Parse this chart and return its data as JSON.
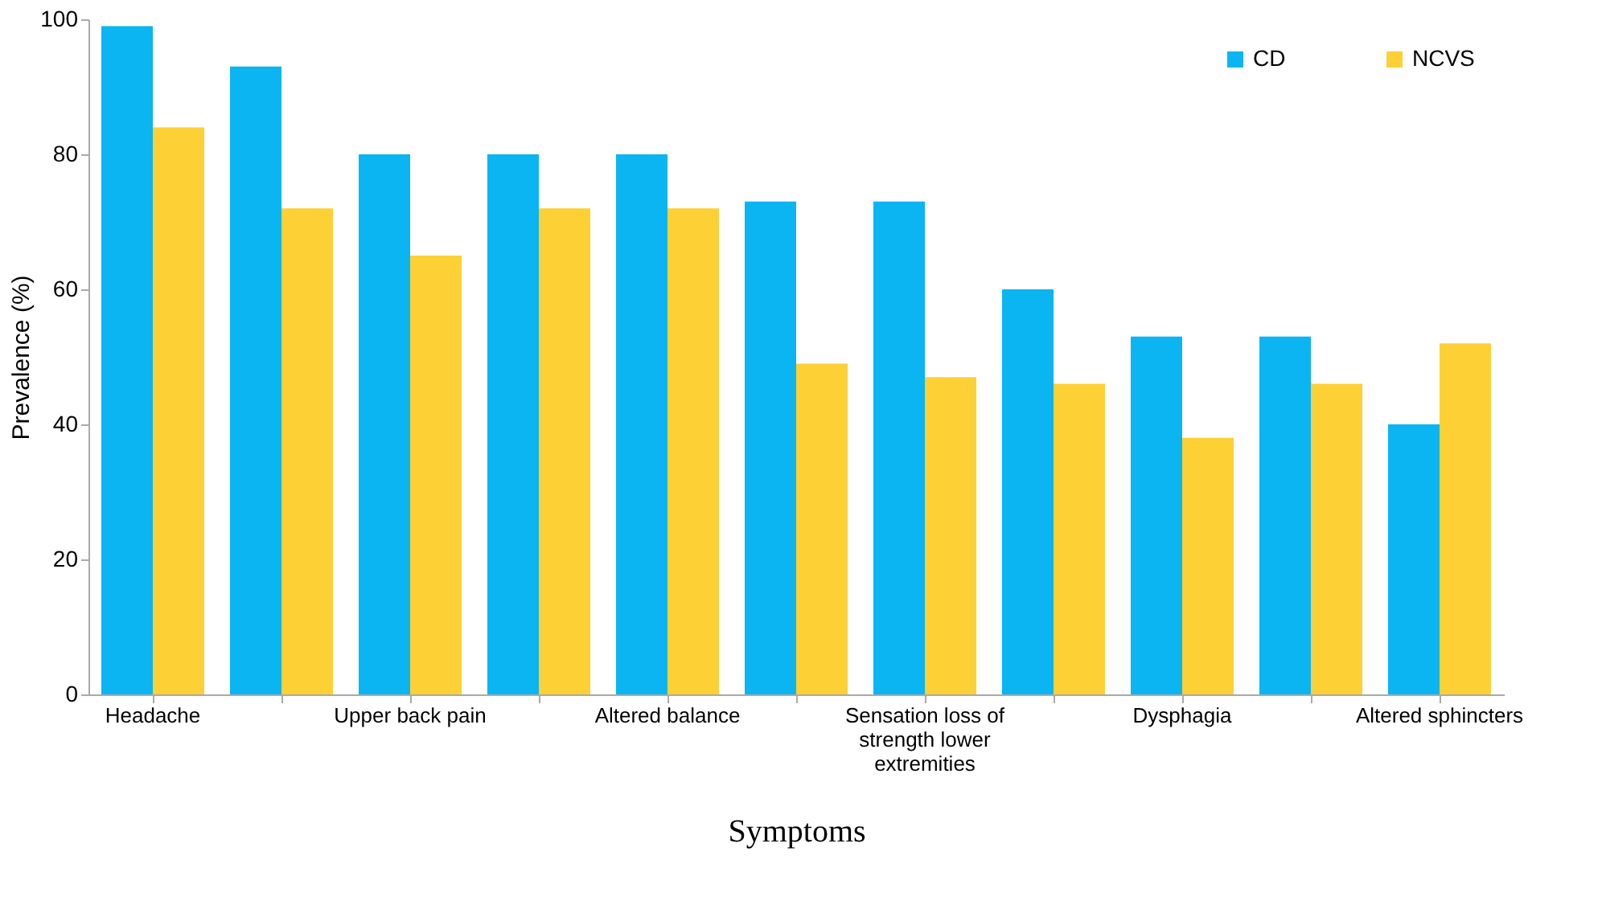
{
  "chart_data": {
    "type": "bar",
    "xlabel": "Symptoms",
    "ylabel": "Prevalence (%)",
    "categories": [
      "Headache",
      null,
      "Upper back pain",
      null,
      "Altered balance",
      null,
      "Sensation loss of strength lower extremities",
      null,
      "Dysphagia",
      null,
      "Altered sphincters"
    ],
    "series": [
      {
        "name": "CD",
        "color": "#0bb5f2",
        "values": [
          99,
          93,
          80,
          80,
          80,
          73,
          73,
          60,
          53,
          53,
          40
        ]
      },
      {
        "name": "NCVS",
        "color": "#fdd035",
        "values": [
          84,
          72,
          65,
          72,
          72,
          49,
          47,
          46,
          38,
          46,
          52
        ]
      }
    ],
    "ylim": [
      0,
      100
    ],
    "yticks": [
      0,
      20,
      40,
      60,
      80,
      100
    ],
    "grid": false,
    "legend": "top right"
  }
}
